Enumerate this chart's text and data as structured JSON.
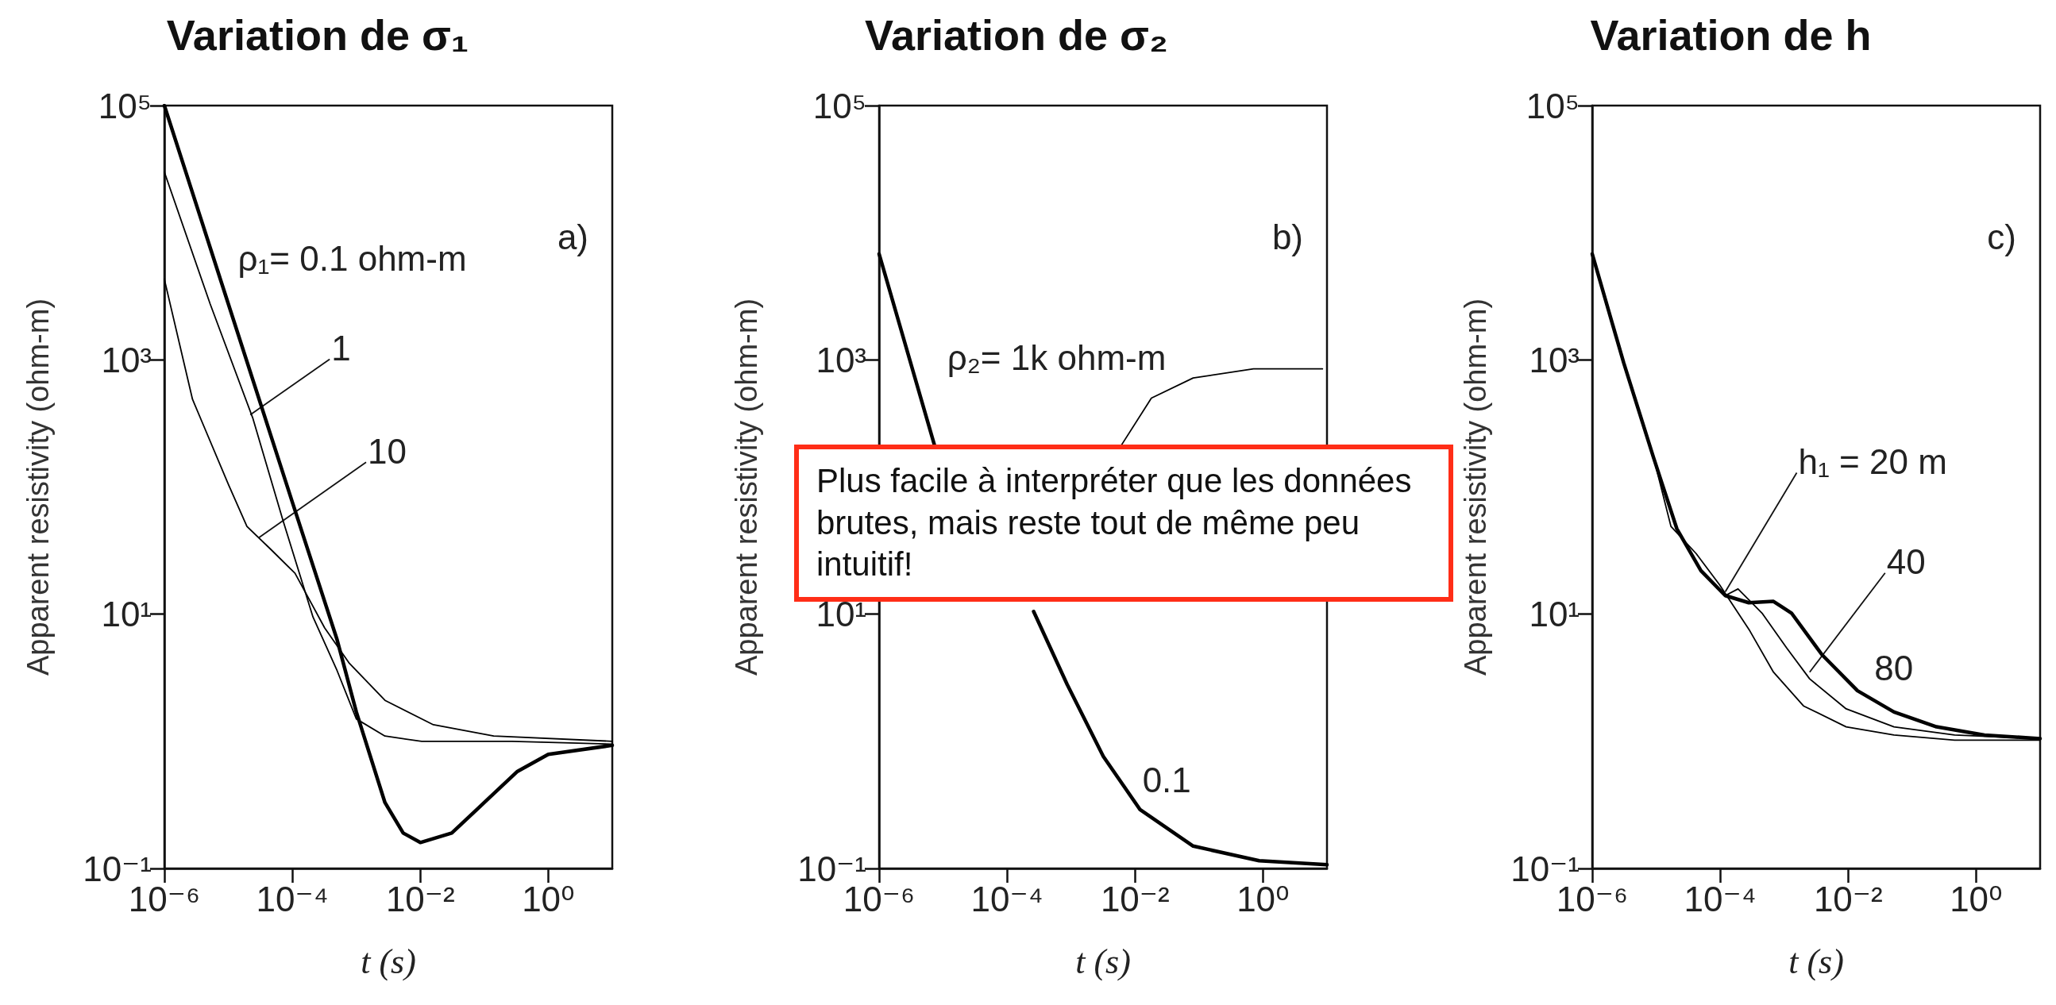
{
  "chart_data": [
    {
      "type": "line",
      "title": "Variation de σ₁",
      "xlabel": "t (s)",
      "ylabel": "Apparent resistivity (ohm-m)",
      "log": "xy",
      "line_style": "solid",
      "xlim": [
        1e-06,
        10
      ],
      "ylim": [
        0.1,
        100000
      ],
      "xticks": [
        {
          "value": 1e-06,
          "label": "10⁻⁶"
        },
        {
          "value": 0.0001,
          "label": "10⁻⁴"
        },
        {
          "value": 0.01,
          "label": "10⁻²"
        },
        {
          "value": 1,
          "label": "10⁰"
        }
      ],
      "yticks": [
        {
          "value": 0.1,
          "label": "10⁻¹"
        },
        {
          "value": 10,
          "label": "10¹"
        },
        {
          "value": 1000,
          "label": "10³"
        },
        {
          "value": 100000,
          "label": "10⁵"
        }
      ],
      "series": [
        {
          "color": "#000000",
          "x": [
            1e-06,
            1e-05,
            0.0001,
            0.0005,
            0.001,
            0.0028,
            0.0054,
            0.01,
            0.031,
            0.1,
            0.33,
            1,
            10
          ],
          "values": [
            100000,
            2750,
            76,
            6.3,
            1.7,
            0.33,
            0.19,
            0.16,
            0.19,
            0.33,
            0.58,
            0.79,
            0.93
          ]
        },
        {
          "color": "#000000",
          "x": [
            1e-06,
            5.2e-06,
            2.4e-05,
            7.1e-05,
            0.00021,
            0.0005,
            0.001,
            0.0028,
            0.0105,
            0.27,
            10
          ],
          "values": [
            30000,
            2750,
            350,
            55,
            9.5,
            3.6,
            1.5,
            1.1,
            1.0,
            1.0,
            0.95
          ]
        },
        {
          "color": "#000000",
          "x": [
            1e-06,
            2.75e-06,
            1e-05,
            1.95e-05,
            4.7e-05,
            0.00011,
            0.00032,
            0.00078,
            0.0028,
            0.016,
            0.14,
            10
          ],
          "values": [
            4300,
            490,
            105,
            49,
            32,
            21,
            7.8,
            4.1,
            2.1,
            1.35,
            1.1,
            1.0
          ]
        }
      ],
      "annotations": [
        "a)",
        "ρ₁= 0.1 ohm-m",
        {
          "text": "1",
          "x": 2.2e-05,
          "y": 370
        },
        {
          "text": "10",
          "x": 3e-05,
          "y": 40
        }
      ]
    },
    {
      "type": "line",
      "title": "Variation de σ₂",
      "xlabel": "t (s)",
      "ylabel": "Apparent resistivity (ohm-m)",
      "log": "xy",
      "line_style": "solid",
      "xlim": [
        1e-06,
        10
      ],
      "ylim": [
        0.1,
        100000
      ],
      "xticks": [
        {
          "value": 1e-06,
          "label": "10⁻⁶"
        },
        {
          "value": 0.0001,
          "label": "10⁻⁴"
        },
        {
          "value": 0.01,
          "label": "10⁻²"
        },
        {
          "value": 1,
          "label": "10⁰"
        }
      ],
      "yticks": [
        {
          "value": 0.1,
          "label": "10⁻¹"
        },
        {
          "value": 10,
          "label": "10¹"
        },
        {
          "value": 1000,
          "label": "10³"
        },
        {
          "value": 100000,
          "label": "10⁵"
        }
      ],
      "series": [
        {
          "color": "#000000",
          "x": [
            1e-06,
            7.4e-06,
            4e-05,
            0.00026,
            0.00087,
            0.0032,
            0.012,
            0.081,
            0.87,
            10
          ],
          "values": [
            6800,
            210,
            null,
            10.5,
            2.8,
            0.76,
            0.29,
            0.15,
            0.115,
            0.107
          ]
        },
        {
          "color": "#000000",
          "x": [
            0.006,
            0.018,
            0.081,
            0.71,
            8.5
          ],
          "values": [
            210,
            500,
            720,
            850,
            850
          ]
        }
      ],
      "annotations": [
        "b)",
        "ρ₂= 1k ohm-m",
        "0.1"
      ]
    },
    {
      "type": "line",
      "title": "Variation de h",
      "xlabel": "t (s)",
      "ylabel": "Apparent resistivity (ohm-m)",
      "log": "xy",
      "line_style": "solid",
      "xlim": [
        1e-06,
        10
      ],
      "ylim": [
        0.1,
        100000
      ],
      "xticks": [
        {
          "value": 1e-06,
          "label": "10⁻⁶"
        },
        {
          "value": 0.0001,
          "label": "10⁻⁴"
        },
        {
          "value": 0.01,
          "label": "10⁻²"
        },
        {
          "value": 1,
          "label": "10⁰"
        }
      ],
      "yticks": [
        {
          "value": 0.1,
          "label": "10⁻¹"
        },
        {
          "value": 10,
          "label": "10¹"
        },
        {
          "value": 1000,
          "label": "10³"
        },
        {
          "value": 100000,
          "label": "10⁵"
        }
      ],
      "series": [
        {
          "color": "#000000",
          "x": [
            1e-06,
            3.1e-06,
            9.1e-06,
            2.1e-05,
            5e-05,
            0.00012,
            0.00028,
            0.00068,
            0.0013,
            0.0039,
            0.014,
            0.052,
            0.24,
            1.35,
            10
          ],
          "values": [
            6800,
            950,
            170,
            47,
            22,
            14,
            12.3,
            12.6,
            10.2,
            4.8,
            2.5,
            1.7,
            1.3,
            1.12,
            1.05
          ]
        },
        {
          "color": "#000000",
          "x": [
            1e-06,
            3.1e-06,
            9.1e-06,
            1.7e-05,
            4.2e-05,
            9.8e-05,
            0.00029,
            0.00068,
            0.002,
            0.0093,
            0.052,
            0.46,
            10
          ],
          "values": [
            6800,
            950,
            170,
            49,
            30,
            17,
            7.4,
            3.5,
            1.9,
            1.3,
            1.12,
            1.02,
            1.02
          ]
        },
        {
          "color": "#000000",
          "x": [
            1e-06,
            3.1e-06,
            9.1e-06,
            2.1e-05,
            5e-05,
            0.00012,
            0.00019,
            0.00045,
            0.0011,
            0.0025,
            0.0093,
            0.052,
            0.46,
            10
          ],
          "values": [
            6800,
            950,
            170,
            47,
            22,
            14,
            15.8,
            10.2,
            5.4,
            3.1,
            1.8,
            1.3,
            1.12,
            1.05
          ]
        }
      ],
      "annotations": [
        "c)",
        {
          "text": "h₁ = 20 m",
          "x": 0.00012,
          "y": 15
        },
        {
          "text": "40",
          "x": 0.0025,
          "y": 3.5
        },
        "80"
      ]
    },
    {
      "type": "other",
      "annotations": [
        "Plus facile à interpréter que les données brutes, mais reste tout de même peu intuitif!"
      ]
    }
  ]
}
